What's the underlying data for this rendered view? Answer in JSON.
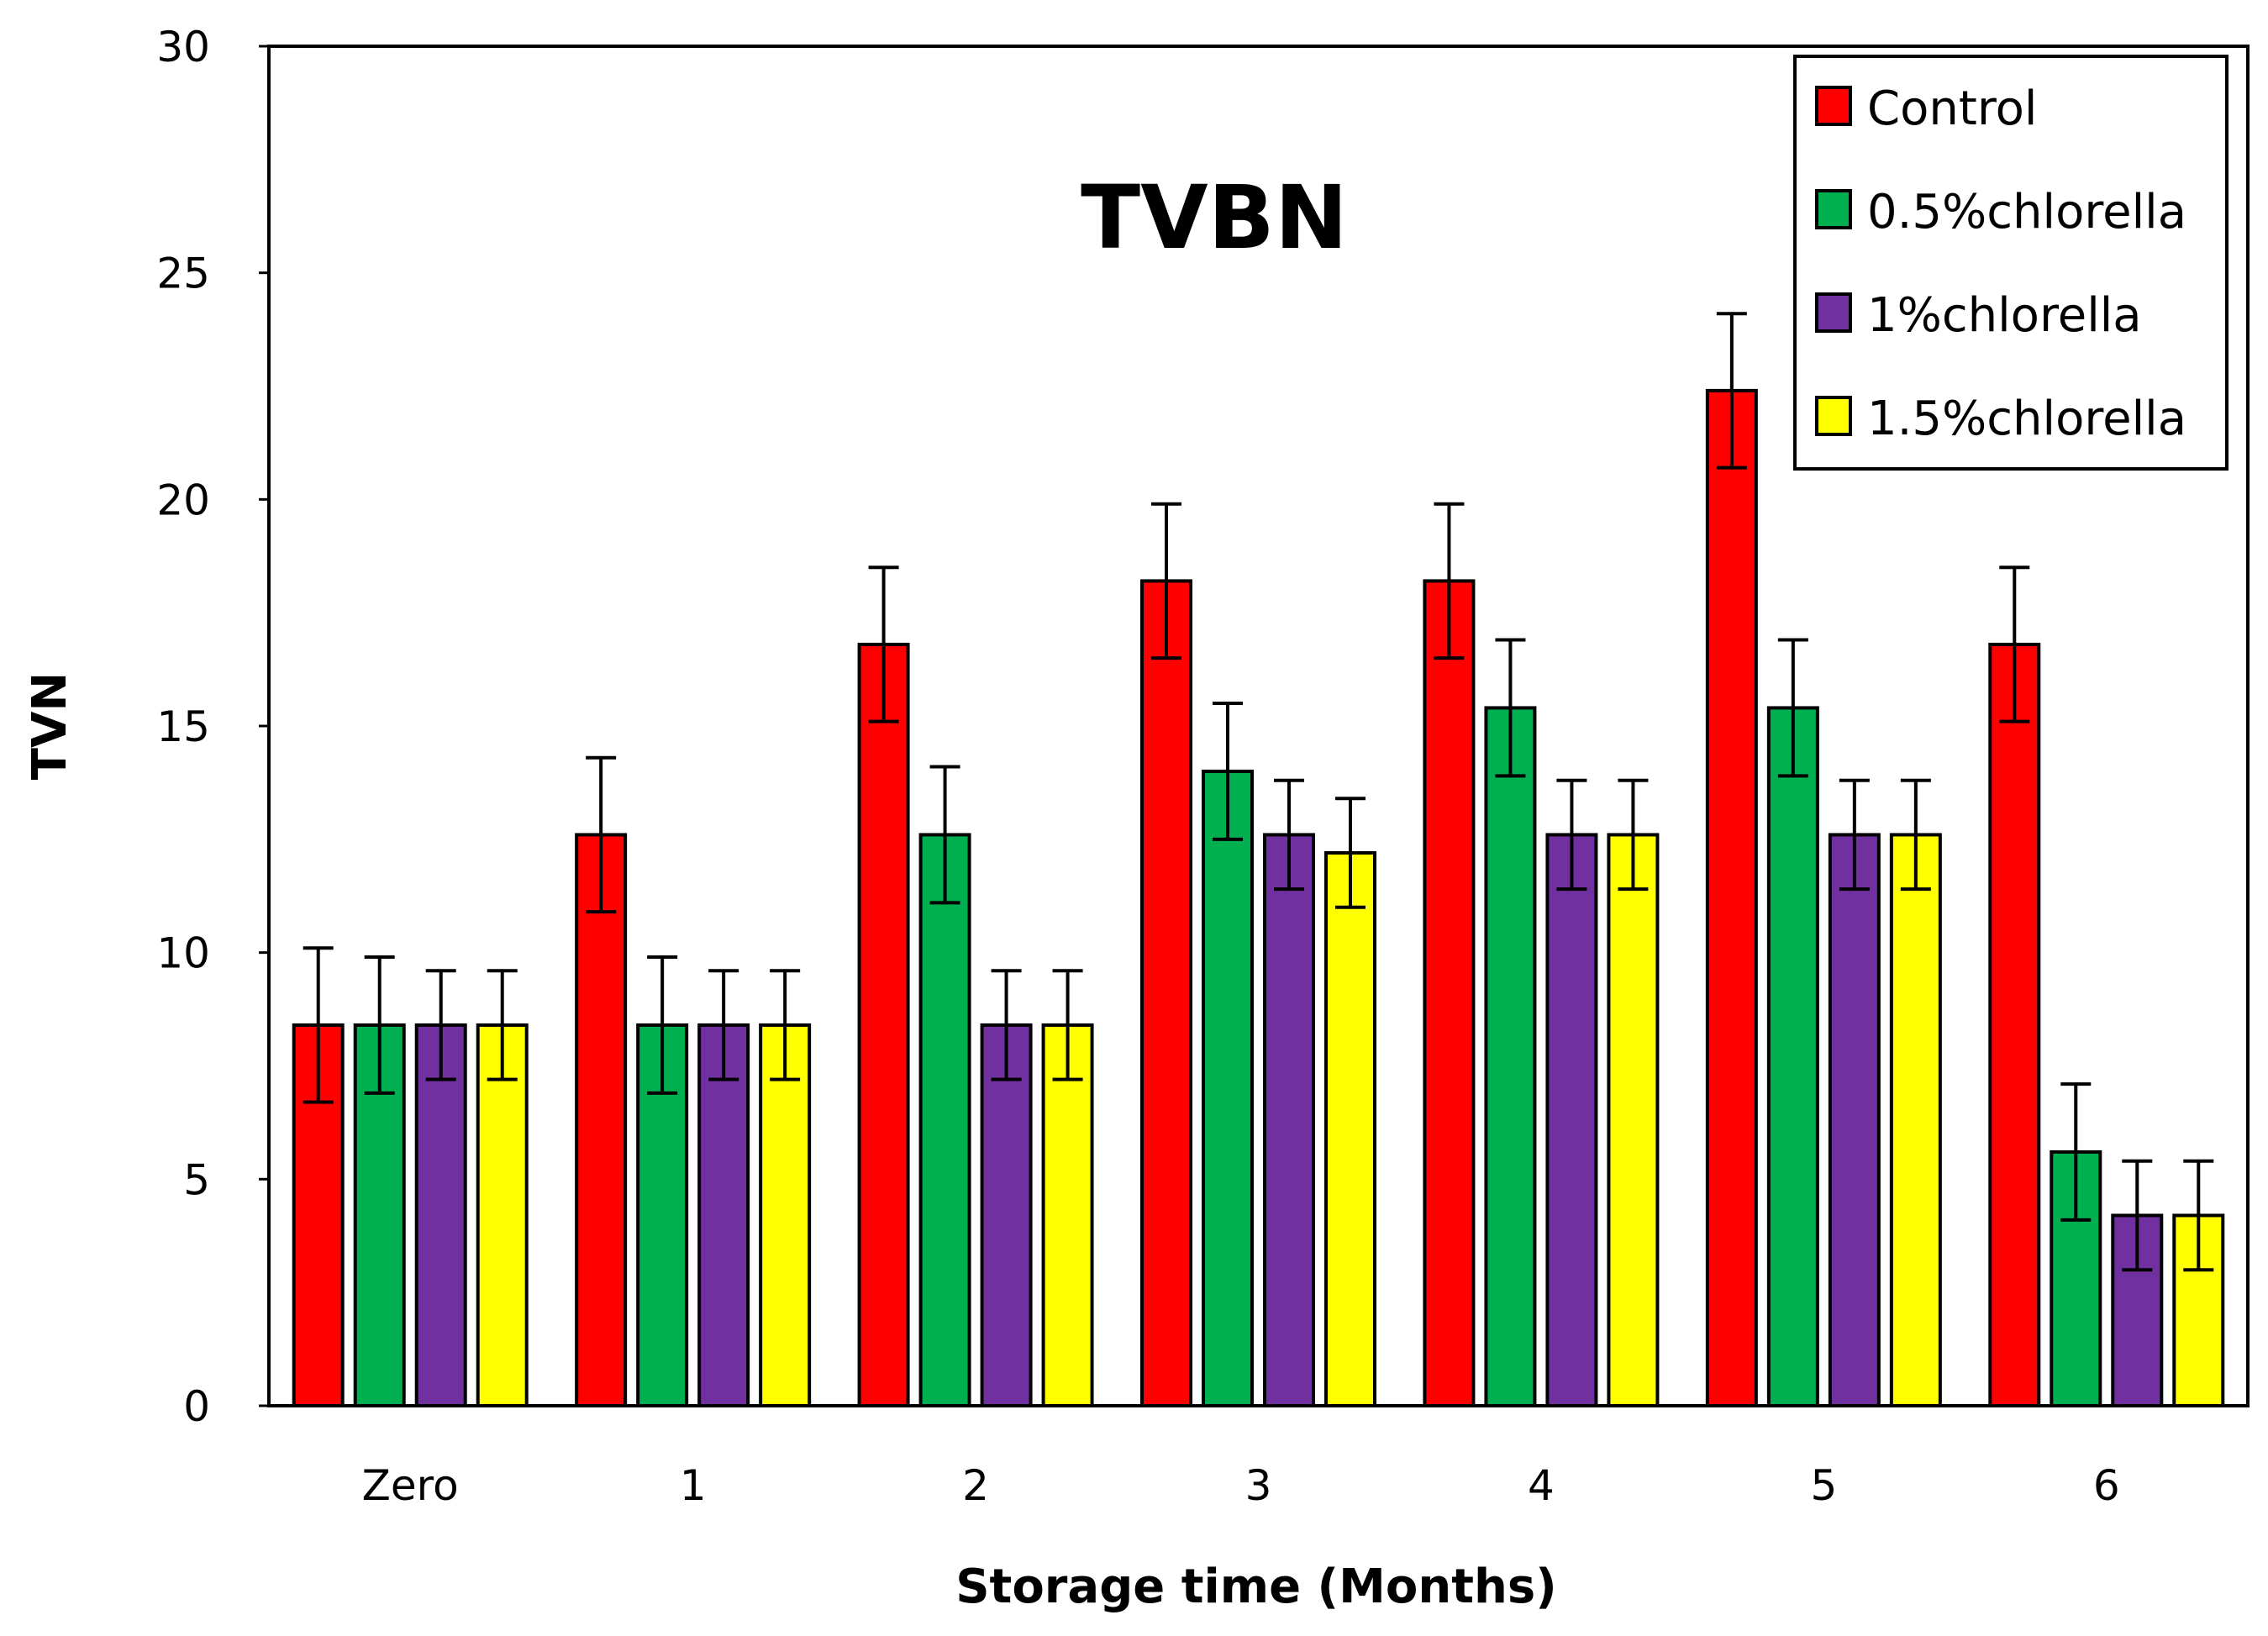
{
  "chart_data": {
    "type": "bar",
    "title": "TVBN",
    "xlabel": "Storage time (Months)",
    "ylabel": "TVN",
    "ylim": [
      0,
      30
    ],
    "yticks": [
      "0",
      "5",
      "10",
      "15",
      "20",
      "25",
      "30"
    ],
    "grid": false,
    "legend_position": "top-right",
    "categories": [
      "Zero",
      "1",
      "2",
      "3",
      "4",
      "5",
      "6"
    ],
    "series": [
      {
        "name": "Control",
        "color": "#FF0000",
        "values": [
          8.4,
          12.6,
          16.8,
          18.2,
          18.2,
          22.4,
          16.8
        ],
        "errors": [
          1.7,
          1.7,
          1.7,
          1.7,
          1.7,
          1.7,
          1.7
        ]
      },
      {
        "name": "0.5%chlorella",
        "color": "#00B050",
        "values": [
          8.4,
          8.4,
          12.6,
          14.0,
          15.4,
          15.4,
          5.6
        ],
        "errors": [
          1.5,
          1.5,
          1.5,
          1.5,
          1.5,
          1.5,
          1.5
        ]
      },
      {
        "name": "1%chlorella",
        "color": "#7030A0",
        "values": [
          8.4,
          8.4,
          8.4,
          12.6,
          12.6,
          12.6,
          4.2
        ],
        "errors": [
          1.2,
          1.2,
          1.2,
          1.2,
          1.2,
          1.2,
          1.2
        ]
      },
      {
        "name": "1.5%chlorella",
        "color": "#FFFF00",
        "values": [
          8.4,
          8.4,
          8.4,
          12.2,
          12.6,
          12.6,
          4.2
        ],
        "errors": [
          1.2,
          1.2,
          1.2,
          1.2,
          1.2,
          1.2,
          1.2
        ]
      }
    ]
  }
}
